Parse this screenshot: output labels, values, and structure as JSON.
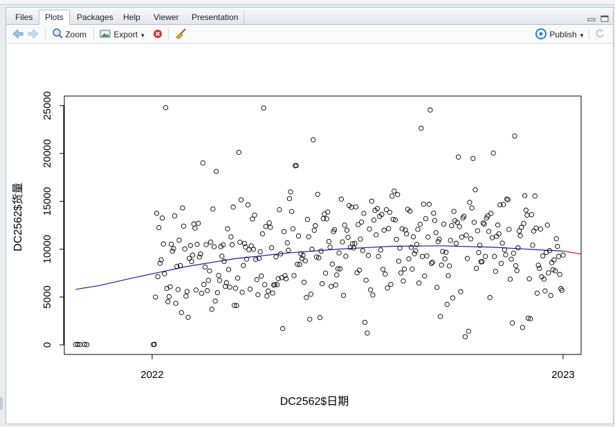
{
  "tabs": [
    {
      "label": "Files"
    },
    {
      "label": "Plots"
    },
    {
      "label": "Packages"
    },
    {
      "label": "Help"
    },
    {
      "label": "Viewer"
    },
    {
      "label": "Presentation"
    }
  ],
  "active_tab": "Plots",
  "toolbar": {
    "zoom_label": "Zoom",
    "export_label": "Export",
    "publish_label": "Publish"
  },
  "colors": {
    "accent": "#1c7ed6",
    "curve_fit": "#1a1aa8",
    "curve_extrapolated": "#d42020",
    "delete_icon": "#d9302c"
  },
  "chart_data": {
    "type": "scatter",
    "title": "",
    "xlabel": "DC2562$日期",
    "ylabel": "DC2562$货量",
    "xlim": [
      "2021-10-15",
      "2023-01-17"
    ],
    "ylim": [
      -1000,
      26000
    ],
    "xticks": [
      {
        "value": "2022-01-01",
        "label": "2022"
      },
      {
        "value": "2023-01-01",
        "label": "2023"
      }
    ],
    "yticks": [
      0,
      5000,
      10000,
      15000,
      20000,
      25000
    ],
    "grid": false,
    "legend": "none",
    "low_value_points": [
      {
        "x": "2021-10-25",
        "y": 40
      },
      {
        "x": "2021-10-27",
        "y": 60
      },
      {
        "x": "2021-10-29",
        "y": 30
      },
      {
        "x": "2021-11-02",
        "y": 50
      },
      {
        "x": "2021-11-04",
        "y": 20
      },
      {
        "x": "2022-01-02",
        "y": 30
      },
      {
        "x": "2022-01-03",
        "y": 60
      }
    ],
    "smooth_curve": [
      {
        "x": "2021-10-25",
        "y": 5800
      },
      {
        "x": "2021-11-15",
        "y": 6200
      },
      {
        "x": "2021-12-15",
        "y": 7000
      },
      {
        "x": "2022-02-01",
        "y": 8200
      },
      {
        "x": "2022-03-15",
        "y": 9000
      },
      {
        "x": "2022-05-01",
        "y": 9600
      },
      {
        "x": "2022-06-15",
        "y": 10000
      },
      {
        "x": "2022-08-01",
        "y": 10300
      },
      {
        "x": "2022-09-15",
        "y": 10350
      },
      {
        "x": "2022-11-01",
        "y": 10200
      },
      {
        "x": "2022-12-15",
        "y": 9900
      },
      {
        "x": "2023-01-01",
        "y": 9800
      }
    ],
    "extrapolated_curve": [
      {
        "x": "2023-01-01",
        "y": 9800
      },
      {
        "x": "2023-01-17",
        "y": 9500
      }
    ],
    "points_per_day_approx": 1,
    "main_cloud": {
      "x_start": "2022-01-04",
      "x_end": "2023-01-01",
      "y_range": [
        0,
        25000
      ]
    }
  }
}
